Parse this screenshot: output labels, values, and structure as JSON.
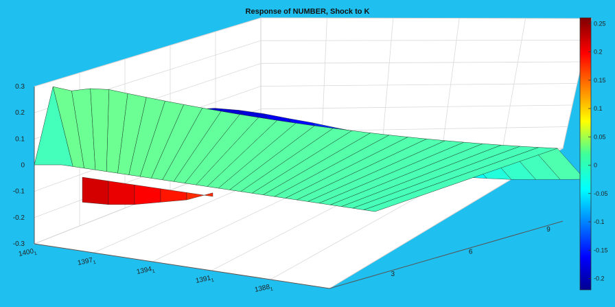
{
  "chart_data": {
    "type": "surface",
    "title": "Response of NUMBER, Shock to K",
    "z_ticks": [
      "0.3",
      "0.2",
      "0.1",
      "0",
      "-0.1",
      "-0.2",
      "-0.3"
    ],
    "zlim": [
      -0.3,
      0.3
    ],
    "x_ticks": [
      {
        "main": "1400",
        "sub": "1"
      },
      {
        "main": "1397",
        "sub": "1"
      },
      {
        "main": "1394",
        "sub": "1"
      },
      {
        "main": "1391",
        "sub": "1"
      },
      {
        "main": "1388",
        "sub": "1"
      }
    ],
    "y_ticks": [
      "3",
      "6",
      "9"
    ],
    "ylim": [
      1,
      10
    ],
    "colorbar": {
      "ticks": [
        "0.25",
        "0.2",
        "0.15",
        "0.1",
        "0.05",
        "0",
        "-0.05",
        "-0.1",
        "-0.15",
        "-0.2"
      ],
      "range": [
        -0.22,
        0.26
      ],
      "colormap": "jet"
    },
    "grid": true,
    "front_slice_response": [
      0.0,
      0.24,
      0.23,
      0.24,
      0.24,
      0.23,
      0.22,
      0.21,
      0.2,
      0.19,
      0.18,
      0.17,
      0.16,
      0.15,
      0.14,
      0.13,
      0.12,
      0.11,
      0.1,
      0.09,
      0.08,
      0.07,
      0.06,
      0.05,
      0.04,
      0.03,
      0.02,
      0.01,
      0.0
    ],
    "back_slice_response": [
      0.25,
      0.25,
      0.26,
      0.28,
      0.3,
      0.3,
      0.29,
      0.27,
      0.25,
      0.22,
      0.19,
      0.15,
      0.11,
      0.07,
      0.05,
      0.03,
      0.02,
      0.01,
      0.0
    ],
    "negative_region_response": [
      -0.16,
      -0.17,
      -0.17,
      -0.16,
      -0.15,
      -0.12
    ]
  }
}
